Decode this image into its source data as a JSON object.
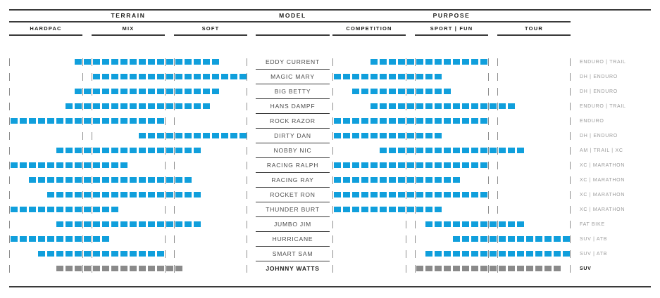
{
  "colors": {
    "bar_blue": "#109fdc",
    "bar_gray": "#8a8a8a",
    "rule_dark": "#3a3a3a",
    "tick_gray": "#8e8e8e",
    "discipline_gray": "#9b9b9b",
    "model_text": "#4a4a4a",
    "header_text": "#1d1d1b"
  },
  "header": {
    "terrain": "TERRAIN",
    "model": "MODEL",
    "purpose": "PURPOSE",
    "terrain_sub": [
      "HARDPAC",
      "MIX",
      "SOFT"
    ],
    "purpose_sub": [
      "COMPETITION",
      "SPORT | FUN",
      "TOUR"
    ]
  },
  "chart_data": {
    "type": "table",
    "title": "Tire model range chart: terrain and purpose coverage per model",
    "scale": {
      "slots_total": 26,
      "slots_per_section": 8,
      "boundary_slots_at": [
        8,
        17
      ],
      "terrain_sections": [
        "HARDPAC",
        "MIX",
        "SOFT"
      ],
      "purpose_sections": [
        "COMPETITION",
        "SPORT | FUN",
        "TOUR"
      ],
      "note": "Each bar is a continuous range of small squares on a 26-slot scale: slots 0-7 first section, slot 8 boundary, 9-16 middle section, slot 17 boundary, 18-25 last section. Ticks mark section edges."
    },
    "rows": [
      {
        "model": "EDDY CURRENT",
        "terrain": {
          "start": 7,
          "end": 22
        },
        "purpose": {
          "start": 4,
          "end": 16
        },
        "discipline": "ENDURO | TRAIL",
        "color": "blue"
      },
      {
        "model": "MAGIC MARY",
        "terrain": {
          "start": 9,
          "end": 25
        },
        "purpose": {
          "start": 0,
          "end": 11
        },
        "discipline": "DH | ENDURO",
        "color": "blue"
      },
      {
        "model": "BIG BETTY",
        "terrain": {
          "start": 7,
          "end": 22
        },
        "purpose": {
          "start": 2,
          "end": 12
        },
        "discipline": "DH | ENDURO",
        "color": "blue"
      },
      {
        "model": "HANS DAMPF",
        "terrain": {
          "start": 6,
          "end": 21
        },
        "purpose": {
          "start": 4,
          "end": 19
        },
        "discipline": "ENDURO | TRAIL",
        "color": "blue"
      },
      {
        "model": "ROCK RAZOR",
        "terrain": {
          "start": 0,
          "end": 16
        },
        "purpose": {
          "start": 0,
          "end": 16
        },
        "discipline": "ENDURO",
        "color": "blue"
      },
      {
        "model": "DIRTY DAN",
        "terrain": {
          "start": 14,
          "end": 25
        },
        "purpose": {
          "start": 0,
          "end": 11
        },
        "discipline": "DH | ENDURO",
        "color": "blue"
      },
      {
        "model": "NOBBY NIC",
        "terrain": {
          "start": 5,
          "end": 20
        },
        "purpose": {
          "start": 5,
          "end": 20
        },
        "discipline": "AM | TRAIL | XC",
        "color": "blue"
      },
      {
        "model": "RACING RALPH",
        "terrain": {
          "start": 0,
          "end": 12
        },
        "purpose": {
          "start": 0,
          "end": 16
        },
        "discipline": "XC | MARATHON",
        "color": "blue"
      },
      {
        "model": "RACING RAY",
        "terrain": {
          "start": 2,
          "end": 19
        },
        "purpose": {
          "start": 0,
          "end": 13
        },
        "discipline": "XC | MARATHON",
        "color": "blue"
      },
      {
        "model": "ROCKET RON",
        "terrain": {
          "start": 4,
          "end": 20
        },
        "purpose": {
          "start": 0,
          "end": 16
        },
        "discipline": "XC | MARATHON",
        "color": "blue"
      },
      {
        "model": "THUNDER BURT",
        "terrain": {
          "start": 0,
          "end": 11
        },
        "purpose": {
          "start": 0,
          "end": 11
        },
        "discipline": "XC | MARATHON",
        "color": "blue"
      },
      {
        "model": "JUMBO JIM",
        "terrain": {
          "start": 5,
          "end": 20
        },
        "purpose": {
          "start": 10,
          "end": 20
        },
        "discipline": "FAT BIKE",
        "color": "blue"
      },
      {
        "model": "HURRICANE",
        "terrain": {
          "start": 0,
          "end": 10
        },
        "purpose": {
          "start": 13,
          "end": 25
        },
        "discipline": "SUV | ATB",
        "color": "blue"
      },
      {
        "model": "SMART SAM",
        "terrain": {
          "start": 3,
          "end": 16
        },
        "purpose": {
          "start": 10,
          "end": 25
        },
        "discipline": "SUV | ATB",
        "color": "blue"
      },
      {
        "model": "JOHNNY WATTS",
        "terrain": {
          "start": 5,
          "end": 18
        },
        "purpose": {
          "start": 9,
          "end": 24
        },
        "discipline": "SUV",
        "color": "gray"
      }
    ]
  }
}
